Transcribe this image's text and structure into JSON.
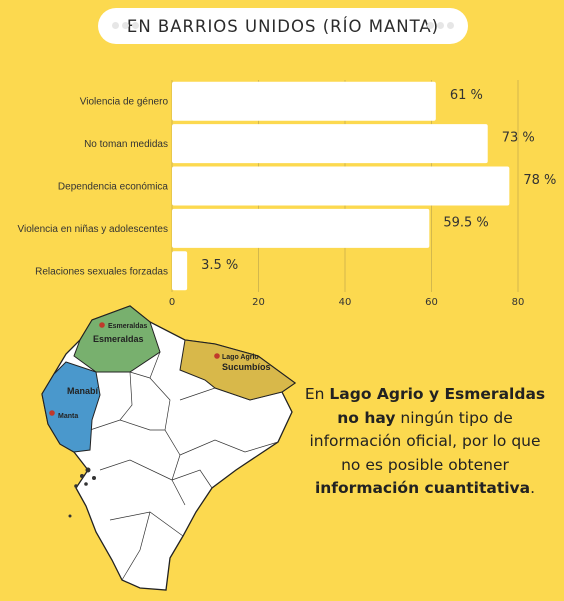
{
  "title": "EN BARRIOS UNIDOS (RÍO MANTA)",
  "chart_data": {
    "type": "bar",
    "orientation": "horizontal",
    "categories": [
      "Violencia de género",
      "No toman  medidas",
      "Dependencia económica",
      "Violencia en niñas y adolescentes",
      "Relaciones sexuales forzadas"
    ],
    "values": [
      61,
      73,
      78,
      59.5,
      3.5
    ],
    "value_labels": [
      "61 %",
      "73 %",
      "78 %",
      "59.5 %",
      "3.5 %"
    ],
    "xlim": [
      0,
      80
    ],
    "xticks": [
      0,
      20,
      40,
      60,
      80
    ],
    "grid": true,
    "bar_color": "#ffffff"
  },
  "map": {
    "labels": {
      "esmeraldas_city": "Esmeraldas",
      "esmeraldas_province": "Esmeraldas",
      "lago_agrio_city": "Lago Agrio",
      "sucumbios_province": "Sucumbíos",
      "manabi_province": "Manabí",
      "manta_city": "Manta"
    },
    "colors": {
      "esmeraldas": "#78b06e",
      "sucumbios": "#d8b84a",
      "manabi": "#4a98cc",
      "land": "#ffffff",
      "city_dot": "#c0392b"
    }
  },
  "note": {
    "p1": "En ",
    "b1": "Lago Agrio y Esmeraldas no hay",
    "p2": " ningún tipo de información oficial, por lo que no es posible obtener ",
    "b2": "información cuantitativa",
    "p3": "."
  }
}
